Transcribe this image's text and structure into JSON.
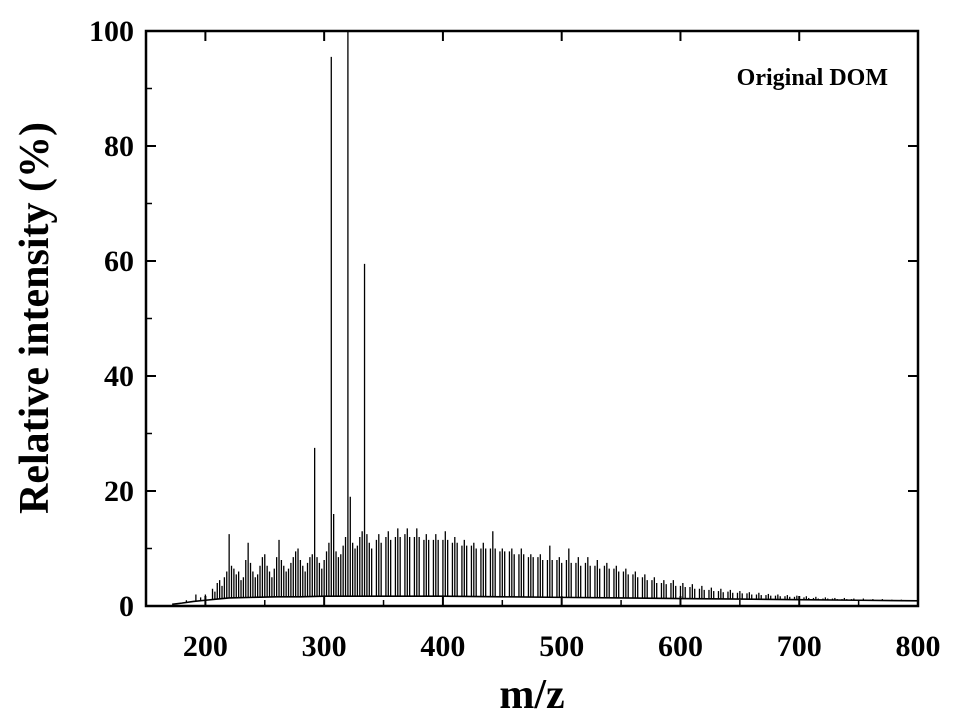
{
  "chart_data": {
    "type": "line",
    "title": "",
    "xlabel": "m/z",
    "ylabel": "Relative intensity (%)",
    "xlim": [
      150,
      800
    ],
    "ylim": [
      0,
      100
    ],
    "xticks": [
      200,
      300,
      400,
      500,
      600,
      700,
      800
    ],
    "yticks": [
      0,
      20,
      40,
      60,
      80,
      100
    ],
    "grid": false,
    "annotation": "Original DOM",
    "line_color": "#000000",
    "series": [
      {
        "baseline": [
          [
            172,
            0.3
          ],
          [
            180,
            0.5
          ],
          [
            190,
            0.8
          ],
          [
            200,
            1.0
          ],
          [
            210,
            1.2
          ],
          [
            220,
            1.4
          ],
          [
            240,
            1.5
          ],
          [
            260,
            1.6
          ],
          [
            280,
            1.6
          ],
          [
            300,
            1.7
          ],
          [
            350,
            1.7
          ],
          [
            400,
            1.7
          ],
          [
            450,
            1.6
          ],
          [
            500,
            1.5
          ],
          [
            550,
            1.4
          ],
          [
            600,
            1.3
          ],
          [
            650,
            1.2
          ],
          [
            700,
            1.1
          ],
          [
            750,
            1.0
          ],
          [
            800,
            0.9
          ]
        ],
        "peaks": [
          [
            184,
            1.0
          ],
          [
            192,
            2.0
          ],
          [
            196,
            1.5
          ],
          [
            200,
            2.0
          ],
          [
            206,
            3.0
          ],
          [
            208,
            2.5
          ],
          [
            210,
            4.0
          ],
          [
            212,
            4.5
          ],
          [
            214,
            3.5
          ],
          [
            216,
            5.0
          ],
          [
            218,
            6.0
          ],
          [
            220,
            12.5
          ],
          [
            222,
            7.0
          ],
          [
            224,
            6.5
          ],
          [
            226,
            5.5
          ],
          [
            228,
            6.0
          ],
          [
            230,
            4.5
          ],
          [
            232,
            5.0
          ],
          [
            234,
            8.0
          ],
          [
            236,
            11.0
          ],
          [
            238,
            7.5
          ],
          [
            240,
            6.0
          ],
          [
            242,
            5.0
          ],
          [
            244,
            5.5
          ],
          [
            246,
            7.0
          ],
          [
            248,
            8.5
          ],
          [
            250,
            9.0
          ],
          [
            252,
            7.0
          ],
          [
            254,
            6.0
          ],
          [
            256,
            5.0
          ],
          [
            258,
            6.5
          ],
          [
            260,
            8.5
          ],
          [
            262,
            11.5
          ],
          [
            264,
            8.0
          ],
          [
            266,
            7.0
          ],
          [
            268,
            6.0
          ],
          [
            270,
            6.5
          ],
          [
            272,
            7.5
          ],
          [
            274,
            8.5
          ],
          [
            276,
            9.5
          ],
          [
            278,
            10.0
          ],
          [
            280,
            8.0
          ],
          [
            282,
            7.0
          ],
          [
            284,
            6.0
          ],
          [
            286,
            7.5
          ],
          [
            288,
            8.5
          ],
          [
            290,
            9.0
          ],
          [
            292,
            27.5
          ],
          [
            294,
            8.5
          ],
          [
            296,
            7.5
          ],
          [
            298,
            6.5
          ],
          [
            300,
            8.0
          ],
          [
            302,
            9.5
          ],
          [
            304,
            11.0
          ],
          [
            306,
            95.5
          ],
          [
            308,
            16.0
          ],
          [
            310,
            9.5
          ],
          [
            312,
            8.5
          ],
          [
            314,
            9.0
          ],
          [
            316,
            10.5
          ],
          [
            318,
            12.0
          ],
          [
            320,
            100
          ],
          [
            322,
            19.0
          ],
          [
            324,
            11.0
          ],
          [
            326,
            10.0
          ],
          [
            328,
            10.5
          ],
          [
            330,
            12.0
          ],
          [
            332,
            13.0
          ],
          [
            334,
            59.5
          ],
          [
            336,
            12.5
          ],
          [
            338,
            11.0
          ],
          [
            340,
            10.0
          ],
          [
            344,
            11.5
          ],
          [
            346,
            12.5
          ],
          [
            348,
            11.0
          ],
          [
            352,
            12.0
          ],
          [
            354,
            13.0
          ],
          [
            356,
            11.5
          ],
          [
            360,
            12.0
          ],
          [
            362,
            13.5
          ],
          [
            364,
            12.0
          ],
          [
            368,
            12.5
          ],
          [
            370,
            13.5
          ],
          [
            372,
            12.0
          ],
          [
            376,
            12.0
          ],
          [
            378,
            13.5
          ],
          [
            380,
            12.0
          ],
          [
            384,
            11.5
          ],
          [
            386,
            12.5
          ],
          [
            388,
            11.5
          ],
          [
            392,
            11.5
          ],
          [
            394,
            12.5
          ],
          [
            396,
            11.5
          ],
          [
            400,
            11.5
          ],
          [
            402,
            13.0
          ],
          [
            404,
            11.5
          ],
          [
            408,
            11.0
          ],
          [
            410,
            12.0
          ],
          [
            412,
            11.0
          ],
          [
            416,
            10.5
          ],
          [
            418,
            11.5
          ],
          [
            420,
            10.5
          ],
          [
            424,
            10.5
          ],
          [
            426,
            11.0
          ],
          [
            428,
            10.0
          ],
          [
            432,
            10.0
          ],
          [
            434,
            11.0
          ],
          [
            436,
            10.0
          ],
          [
            440,
            10.0
          ],
          [
            442,
            13.0
          ],
          [
            444,
            10.0
          ],
          [
            448,
            9.5
          ],
          [
            450,
            10.0
          ],
          [
            452,
            9.5
          ],
          [
            456,
            9.5
          ],
          [
            458,
            10.0
          ],
          [
            460,
            9.0
          ],
          [
            464,
            9.0
          ],
          [
            466,
            10.0
          ],
          [
            468,
            9.0
          ],
          [
            472,
            8.5
          ],
          [
            474,
            9.0
          ],
          [
            476,
            8.5
          ],
          [
            480,
            8.5
          ],
          [
            482,
            9.0
          ],
          [
            484,
            8.0
          ],
          [
            488,
            8.0
          ],
          [
            490,
            10.5
          ],
          [
            492,
            8.0
          ],
          [
            496,
            8.0
          ],
          [
            498,
            8.5
          ],
          [
            500,
            7.5
          ],
          [
            504,
            8.0
          ],
          [
            506,
            10.0
          ],
          [
            508,
            7.5
          ],
          [
            512,
            7.5
          ],
          [
            514,
            8.5
          ],
          [
            516,
            7.0
          ],
          [
            520,
            7.5
          ],
          [
            522,
            8.5
          ],
          [
            524,
            7.0
          ],
          [
            528,
            7.0
          ],
          [
            530,
            8.0
          ],
          [
            532,
            6.5
          ],
          [
            536,
            7.0
          ],
          [
            538,
            7.5
          ],
          [
            540,
            6.5
          ],
          [
            544,
            6.5
          ],
          [
            546,
            7.0
          ],
          [
            548,
            6.0
          ],
          [
            552,
            6.0
          ],
          [
            554,
            6.5
          ],
          [
            556,
            5.5
          ],
          [
            560,
            5.5
          ],
          [
            562,
            6.0
          ],
          [
            564,
            5.0
          ],
          [
            568,
            5.0
          ],
          [
            570,
            5.5
          ],
          [
            572,
            4.5
          ],
          [
            576,
            4.5
          ],
          [
            578,
            5.0
          ],
          [
            580,
            4.0
          ],
          [
            584,
            4.0
          ],
          [
            586,
            4.5
          ],
          [
            588,
            3.8
          ],
          [
            592,
            4.0
          ],
          [
            594,
            4.5
          ],
          [
            596,
            3.5
          ],
          [
            600,
            3.5
          ],
          [
            602,
            4.0
          ],
          [
            604,
            3.3
          ],
          [
            608,
            3.3
          ],
          [
            610,
            3.8
          ],
          [
            612,
            3.0
          ],
          [
            616,
            3.0
          ],
          [
            618,
            3.5
          ],
          [
            620,
            2.8
          ],
          [
            624,
            2.8
          ],
          [
            626,
            3.2
          ],
          [
            628,
            2.6
          ],
          [
            632,
            2.6
          ],
          [
            634,
            3.0
          ],
          [
            636,
            2.4
          ],
          [
            640,
            2.5
          ],
          [
            642,
            2.8
          ],
          [
            644,
            2.3
          ],
          [
            648,
            2.3
          ],
          [
            650,
            2.6
          ],
          [
            652,
            2.2
          ],
          [
            656,
            2.2
          ],
          [
            658,
            2.4
          ],
          [
            660,
            2.0
          ],
          [
            664,
            2.0
          ],
          [
            666,
            2.3
          ],
          [
            668,
            1.9
          ],
          [
            672,
            1.9
          ],
          [
            674,
            2.1
          ],
          [
            676,
            1.8
          ],
          [
            680,
            1.8
          ],
          [
            682,
            2.0
          ],
          [
            684,
            1.7
          ],
          [
            688,
            1.7
          ],
          [
            690,
            1.9
          ],
          [
            692,
            1.6
          ],
          [
            696,
            1.6
          ],
          [
            698,
            1.8
          ],
          [
            700,
            1.5
          ],
          [
            704,
            1.5
          ],
          [
            706,
            1.7
          ],
          [
            708,
            1.4
          ],
          [
            712,
            1.4
          ],
          [
            714,
            1.6
          ],
          [
            716,
            1.3
          ],
          [
            720,
            1.3
          ],
          [
            722,
            1.5
          ],
          [
            724,
            1.3
          ],
          [
            728,
            1.3
          ],
          [
            730,
            1.4
          ],
          [
            732,
            1.2
          ],
          [
            736,
            1.2
          ],
          [
            738,
            1.4
          ],
          [
            740,
            1.2
          ],
          [
            744,
            1.2
          ],
          [
            746,
            1.3
          ],
          [
            748,
            1.1
          ],
          [
            752,
            1.1
          ],
          [
            754,
            1.3
          ],
          [
            756,
            1.1
          ],
          [
            760,
            1.1
          ],
          [
            762,
            1.2
          ],
          [
            764,
            1.0
          ],
          [
            768,
            1.0
          ],
          [
            770,
            1.2
          ],
          [
            772,
            1.0
          ],
          [
            776,
            1.0
          ],
          [
            778,
            1.1
          ],
          [
            780,
            1.0
          ],
          [
            784,
            1.0
          ],
          [
            786,
            1.1
          ],
          [
            788,
            0.9
          ],
          [
            792,
            0.9
          ],
          [
            794,
            1.0
          ],
          [
            796,
            0.9
          ],
          [
            799,
            0.9
          ]
        ]
      }
    ]
  }
}
